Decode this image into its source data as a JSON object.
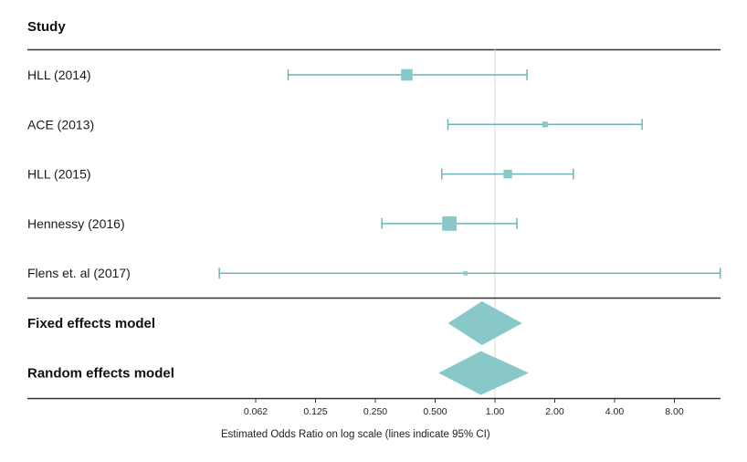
{
  "chart_data": {
    "type": "forest",
    "header": "Study",
    "xlabel": "Estimated Odds Ratio on log scale (lines indicate 95% CI)",
    "xscale": "log2",
    "xlim": [
      0.041,
      13.6
    ],
    "reference_line": 1.0,
    "ticks": [
      0.0625,
      0.125,
      0.25,
      0.5,
      1,
      2,
      4,
      8
    ],
    "tick_labels": [
      "0.062",
      "0.125",
      "0.250",
      "0.500",
      "1.00",
      "2.00",
      "4.00",
      "8.00"
    ],
    "studies": [
      {
        "label": "HLL (2014)",
        "estimate": 0.36,
        "lower": 0.091,
        "upper": 1.45,
        "weight": 3
      },
      {
        "label": "ACE (2013)",
        "estimate": 1.79,
        "lower": 0.58,
        "upper": 5.5,
        "weight": 1
      },
      {
        "label": "HLL (2015)",
        "estimate": 1.16,
        "lower": 0.54,
        "upper": 2.48,
        "weight": 2
      },
      {
        "label": "Hennessy (2016)",
        "estimate": 0.59,
        "lower": 0.27,
        "upper": 1.29,
        "weight": 4
      },
      {
        "label": "Flens et. al (2017)",
        "estimate": 0.71,
        "lower": 0.041,
        "upper": 13.6,
        "weight": 0.5
      }
    ],
    "summaries": [
      {
        "label": "Fixed effects model",
        "estimate": 0.86,
        "lower": 0.58,
        "upper": 1.37
      },
      {
        "label": "Random effects model",
        "estimate": 0.85,
        "lower": 0.52,
        "upper": 1.48
      }
    ],
    "colors": {
      "marker": "#88c8c8",
      "ci_line": "#6fb3b8",
      "axis": "#333333",
      "reference": "#d8d8d8"
    }
  }
}
